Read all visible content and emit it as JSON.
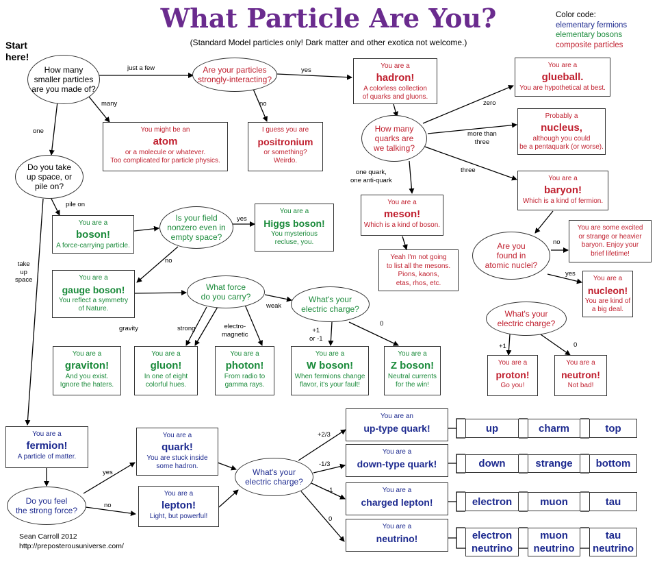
{
  "title": "What Particle Are You?",
  "subtitle": "(Standard Model particles only! Dark matter and other exotica not welcome.)",
  "legend": {
    "heading": "Color code:",
    "fermions": "elementary fermions",
    "bosons": "elementary bosons",
    "composite": "composite particles",
    "colors": {
      "fermions": "#1d2a8f",
      "bosons": "#1a8a3a",
      "composite": "#c0202f",
      "title": "#6a2b8e"
    }
  },
  "start": {
    "line1": "Start",
    "line2": "here!"
  },
  "credit": {
    "author": "Sean Carroll 2012",
    "url": "http://preposterousuniverse.com/"
  },
  "questions": {
    "how_many": [
      "How many",
      "smaller particles",
      "are you made of?"
    ],
    "strongly": [
      "Are your particles",
      "strongly-interacting?"
    ],
    "quarks_count": [
      "How many",
      "quarks are",
      "we talking?"
    ],
    "space": [
      "Do you take",
      "up space, or",
      "pile on?"
    ],
    "field": [
      "Is your field",
      "nonzero even in",
      "empty space?"
    ],
    "force": [
      "What force",
      "do you carry?"
    ],
    "weak_charge": [
      "What's your",
      "electric charge?"
    ],
    "nuclei": [
      "Are you",
      "found in",
      "atomic nuclei?"
    ],
    "nucleon_charge": [
      "What's your",
      "electric charge?"
    ],
    "strong_force": [
      "Do you feel",
      "the strong force?"
    ],
    "fermion_charge": [
      "What's your",
      "electric charge?"
    ]
  },
  "results": {
    "atom": {
      "pre": "You might be an",
      "name": "atom",
      "desc": [
        "or a molecule or whatever.",
        "Too complicated for particle physics."
      ]
    },
    "positronium": {
      "pre": "I guess you are",
      "name": "positronium",
      "desc": [
        "or something?",
        "Weirdo."
      ]
    },
    "hadron": {
      "pre": "You are a",
      "name": "hadron!",
      "desc": [
        "A colorless collection",
        "of quarks and gluons."
      ]
    },
    "glueball": {
      "pre": "You are a",
      "name": "glueball.",
      "desc": [
        "You are hypothetical at best."
      ]
    },
    "nucleus": {
      "pre": "Probably a",
      "name": "nucleus,",
      "desc": [
        "although you could",
        "be a pentaquark (or worse)."
      ]
    },
    "baryon": {
      "pre": "You are a",
      "name": "baryon!",
      "desc": [
        "Which is a kind of fermion."
      ]
    },
    "meson": {
      "pre": "You are a",
      "name": "meson!",
      "desc": [
        "Which is a kind of boson."
      ]
    },
    "mesons_list": [
      "Yeah I'm not going",
      "to list all the mesons.",
      "Pions, kaons,",
      "etas, rhos, etc."
    ],
    "excited": [
      "You are some excited",
      "or strange or heavier",
      "baryon. Enjoy your",
      "brief lifetime!"
    ],
    "nucleon": {
      "pre": "You are a",
      "name": "nucleon!",
      "desc": [
        "You are kind of",
        "a big deal."
      ]
    },
    "proton": {
      "pre": "You are a",
      "name": "proton!",
      "desc": [
        "Go you!"
      ]
    },
    "neutron": {
      "pre": "You are a",
      "name": "neutron!",
      "desc": [
        "Not bad!"
      ]
    },
    "boson": {
      "pre": "You are a",
      "name": "boson!",
      "desc": [
        "A force-carrying particle."
      ]
    },
    "higgs": {
      "pre": "You are a",
      "name": "Higgs boson!",
      "desc": [
        "You mysterious",
        "recluse, you."
      ]
    },
    "gauge": {
      "pre": "You are a",
      "name": "gauge boson!",
      "desc": [
        "You reflect a symmetry",
        "of Nature."
      ]
    },
    "graviton": {
      "pre": "You are a",
      "name": "graviton!",
      "desc": [
        "And you exist.",
        "Ignore the haters."
      ]
    },
    "gluon": {
      "pre": "You are a",
      "name": "gluon!",
      "desc": [
        "In one of eight",
        "colorful hues."
      ]
    },
    "photon": {
      "pre": "You are a",
      "name": "photon!",
      "desc": [
        "From radio to",
        "gamma rays."
      ]
    },
    "wboson": {
      "pre": "You are a",
      "name": "W boson!",
      "desc": [
        "When fermions change",
        "flavor, it's your fault!"
      ]
    },
    "zboson": {
      "pre": "You are a",
      "name": "Z boson!",
      "desc": [
        "Neutral currents",
        "for the win!"
      ]
    },
    "fermion": {
      "pre": "You are a",
      "name": "fermion!",
      "desc": [
        "A particle of matter."
      ]
    },
    "quark": {
      "pre": "You are a",
      "name": "quark!",
      "desc": [
        "You are stuck inside",
        "some hadron."
      ]
    },
    "lepton": {
      "pre": "You are a",
      "name": "lepton!",
      "desc": [
        "Light, but powerful!"
      ]
    },
    "uptype": {
      "pre": "You are an",
      "name": "up-type quark!"
    },
    "downtype": {
      "pre": "You are a",
      "name": "down-type quark!"
    },
    "charged_lepton": {
      "pre": "You are a",
      "name": "charged lepton!"
    },
    "neutrino": {
      "pre": "You are a",
      "name": "neutrino!"
    }
  },
  "leaves": {
    "up": [
      "up",
      "charm",
      "top"
    ],
    "down": [
      "down",
      "strange",
      "bottom"
    ],
    "lepton": [
      "electron",
      "muon",
      "tau"
    ],
    "neutrino": [
      [
        "electron",
        "neutrino"
      ],
      [
        "muon",
        "neutrino"
      ],
      [
        "tau",
        "neutrino"
      ]
    ]
  },
  "edges": {
    "just_a_few": "just a few",
    "many": "many",
    "one": "one",
    "yes1": "yes",
    "no1": "no",
    "zero": "zero",
    "more_than": [
      "more than",
      "three"
    ],
    "three": "three",
    "one_quark": [
      "one quark,",
      "one anti-quark"
    ],
    "pile_on": "pile on",
    "take_up": [
      "take",
      "up",
      "space"
    ],
    "yes_higgs": "yes",
    "no_field": "no",
    "gravity": "gravity",
    "strong": "strong",
    "em": [
      "electro-",
      "magnetic"
    ],
    "weak": "weak",
    "pm1": [
      "+1",
      "or -1"
    ],
    "zero_z": "0",
    "no_nuclei": "no",
    "yes_nuclei": "yes",
    "plus1": "+1",
    "zero_n": "0",
    "yes_strong": "yes",
    "no_strong": "no",
    "p23": "+2/3",
    "m13": "-1/3",
    "m1": "-1",
    "zero_nu": "0"
  }
}
